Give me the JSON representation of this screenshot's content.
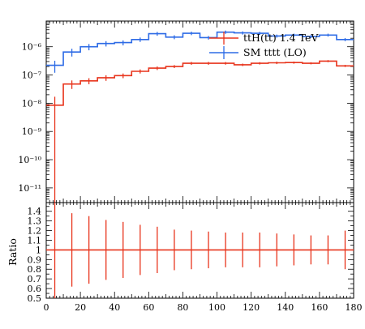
{
  "chart_data": [
    {
      "type": "line",
      "panel": "main",
      "scale": "log",
      "xlim": [
        0,
        180
      ],
      "ylim": [
        3e-12,
        8e-06
      ],
      "y_tick_labels": [
        "10⁻¹¹",
        "10⁻¹⁰",
        "10⁻⁹",
        "10⁻⁸",
        "10⁻⁷",
        "10⁻⁶"
      ],
      "y_tick_values": [
        1e-11,
        1e-10,
        1e-09,
        1e-08,
        1e-07,
        1e-06
      ],
      "bin_edges": [
        0,
        10,
        20,
        30,
        40,
        50,
        60,
        70,
        80,
        90,
        100,
        110,
        120,
        130,
        140,
        150,
        160,
        170,
        180
      ],
      "legend_position": "top-right",
      "series": [
        {
          "name": "ttH(tt) 1.4 TeV",
          "color": "#e8341c",
          "values": [
            8.5e-09,
            4.8e-08,
            6.2e-08,
            8e-08,
            9.5e-08,
            1.35e-07,
            1.75e-07,
            2e-07,
            2.6e-07,
            2.6e-07,
            2.6e-07,
            2.3e-07,
            2.6e-07,
            2.7e-07,
            2.75e-07,
            2.6e-07,
            3.1e-07,
            2.1e-07
          ],
          "errors": [
            8.5e-09,
            1.6e-08,
            1.5e-08,
            1.8e-08,
            1.8e-08,
            2.2e-08,
            2.5e-08,
            2.4e-08,
            3e-08,
            3e-08,
            2.8e-08,
            2.3e-08,
            2.5e-08,
            2.7e-08,
            2.4e-08,
            2.2e-08,
            2.6e-08,
            1.8e-08
          ]
        },
        {
          "name": "SM tttt (LO)",
          "color": "#2d6be6",
          "values": [
            2.2e-07,
            6.5e-07,
            1e-06,
            1.3e-06,
            1.4e-06,
            1.8e-06,
            2.9e-06,
            2.2e-06,
            3e-06,
            2.1e-06,
            3.3e-06,
            3.1e-06,
            3e-06,
            2.4e-06,
            2.6e-06,
            2.3e-06,
            2.6e-06,
            1.8e-06
          ],
          "errors": [
            1e-07,
            2e-07,
            2.5e-07,
            2.8e-07,
            2.8e-07,
            3.2e-07,
            4.5e-07,
            3.5e-07,
            4.2e-07,
            3e-07,
            4.4e-07,
            4e-07,
            3.8e-07,
            3e-07,
            3.2e-07,
            2.8e-07,
            3.1e-07,
            2.2e-07
          ]
        }
      ]
    },
    {
      "type": "line",
      "panel": "ratio",
      "ylabel": "Ratio",
      "xlim": [
        0,
        180
      ],
      "ylim": [
        0.5,
        1.5
      ],
      "y_tick_labels": [
        "0.5",
        "0.6",
        "0.7",
        "0.8",
        "0.9",
        "1",
        "1.1",
        "1.2",
        "1.3",
        "1.4"
      ],
      "x_tick_labels": [
        "0",
        "20",
        "40",
        "60",
        "80",
        "100",
        "120",
        "140",
        "160",
        "180"
      ],
      "series": [
        {
          "name": "ttH(tt) 1.4 TeV",
          "color": "#e8341c",
          "values": [
            1,
            1,
            1,
            1,
            1,
            1,
            1,
            1,
            1,
            1,
            1,
            1,
            1,
            1,
            1,
            1,
            1,
            1
          ],
          "errors": [
            1.0,
            0.38,
            0.35,
            0.31,
            0.29,
            0.26,
            0.24,
            0.21,
            0.2,
            0.19,
            0.18,
            0.18,
            0.18,
            0.17,
            0.16,
            0.15,
            0.15,
            0.2
          ]
        }
      ]
    }
  ]
}
